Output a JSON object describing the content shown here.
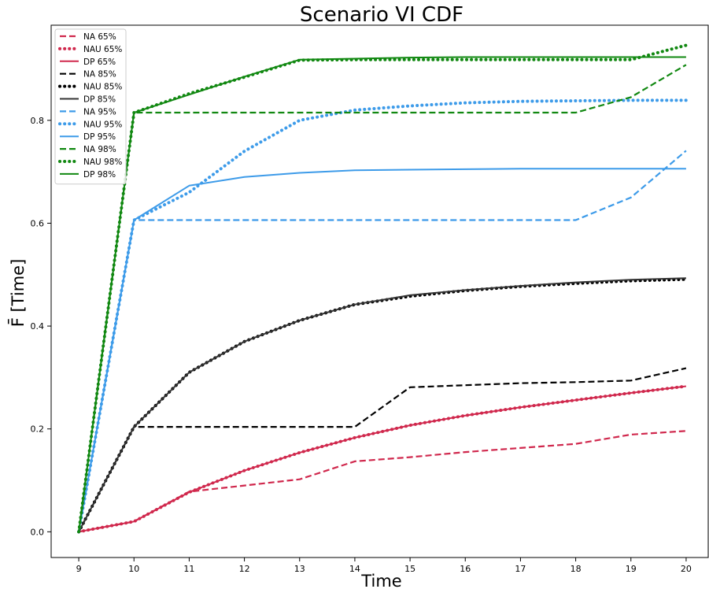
{
  "chart_data": {
    "type": "line",
    "title": "Scenario VI CDF",
    "xlabel": "Time",
    "ylabel": "F̄ [Time]",
    "x": [
      9,
      10,
      11,
      12,
      13,
      14,
      15,
      16,
      17,
      18,
      19,
      20
    ],
    "xlim": [
      8.5,
      20.4
    ],
    "ylim": [
      -0.05,
      0.985
    ],
    "xticks": [
      "9",
      "10",
      "11",
      "12",
      "13",
      "14",
      "15",
      "16",
      "17",
      "18",
      "19",
      "20"
    ],
    "yticks": [
      "0.0",
      "0.2",
      "0.4",
      "0.6",
      "0.8"
    ],
    "ytick_values": [
      0.0,
      0.2,
      0.4,
      0.6,
      0.8
    ],
    "grid": false,
    "legend_position": "top-left",
    "series": [
      {
        "name": "NA 65%",
        "style": "dashed",
        "color": "#d0284d",
        "values": [
          0.0,
          0.02,
          0.078,
          0.09,
          0.102,
          0.137,
          0.145,
          0.155,
          0.163,
          0.171,
          0.189,
          0.196
        ]
      },
      {
        "name": "NAU 65%",
        "style": "dotted",
        "color": "#d0284d",
        "values": [
          0.0,
          0.02,
          0.077,
          0.119,
          0.154,
          0.183,
          0.207,
          0.226,
          0.242,
          0.256,
          0.27,
          0.283
        ]
      },
      {
        "name": "DP 65%",
        "style": "solid",
        "color": "#d0284d",
        "values": [
          0.0,
          0.02,
          0.077,
          0.119,
          0.154,
          0.183,
          0.207,
          0.226,
          0.242,
          0.256,
          0.27,
          0.283
        ]
      },
      {
        "name": "NA 85%",
        "style": "dashed",
        "color": "#000000",
        "values": [
          0.0,
          0.204,
          0.204,
          0.204,
          0.204,
          0.204,
          0.281,
          0.285,
          0.289,
          0.291,
          0.294,
          0.318
        ]
      },
      {
        "name": "NAU 85%",
        "style": "dotted",
        "color": "#000000",
        "values": [
          0.0,
          0.204,
          0.31,
          0.37,
          0.411,
          0.442,
          0.458,
          0.469,
          0.477,
          0.483,
          0.488,
          0.491
        ]
      },
      {
        "name": "DP 85%",
        "style": "solid",
        "color": "#333333",
        "values": [
          0.0,
          0.204,
          0.31,
          0.37,
          0.411,
          0.442,
          0.46,
          0.47,
          0.478,
          0.485,
          0.49,
          0.493
        ]
      },
      {
        "name": "NA 95%",
        "style": "dashed",
        "color": "#3d9be9",
        "values": [
          0.0,
          0.606,
          0.606,
          0.606,
          0.606,
          0.606,
          0.606,
          0.606,
          0.606,
          0.606,
          0.65,
          0.741
        ]
      },
      {
        "name": "NAU 95%",
        "style": "dotted",
        "color": "#3d9be9",
        "values": [
          0.0,
          0.606,
          0.66,
          0.74,
          0.8,
          0.82,
          0.828,
          0.834,
          0.837,
          0.838,
          0.839,
          0.839
        ]
      },
      {
        "name": "DP 95%",
        "style": "solid",
        "color": "#3d9be9",
        "values": [
          0.0,
          0.606,
          0.673,
          0.69,
          0.698,
          0.703,
          0.704,
          0.705,
          0.706,
          0.706,
          0.706,
          0.706
        ]
      },
      {
        "name": "NA 98%",
        "style": "dashed",
        "color": "#118811",
        "values": [
          0.0,
          0.815,
          0.815,
          0.815,
          0.815,
          0.815,
          0.815,
          0.815,
          0.815,
          0.815,
          0.845,
          0.908
        ]
      },
      {
        "name": "NAU 98%",
        "style": "dotted",
        "color": "#118811",
        "values": [
          0.0,
          0.815,
          0.852,
          0.884,
          0.917,
          0.918,
          0.918,
          0.918,
          0.918,
          0.918,
          0.918,
          0.946
        ]
      },
      {
        "name": "DP 98%",
        "style": "solid",
        "color": "#118811",
        "values": [
          0.0,
          0.815,
          0.85,
          0.885,
          0.918,
          0.92,
          0.922,
          0.923,
          0.923,
          0.923,
          0.923,
          0.923
        ]
      }
    ]
  }
}
